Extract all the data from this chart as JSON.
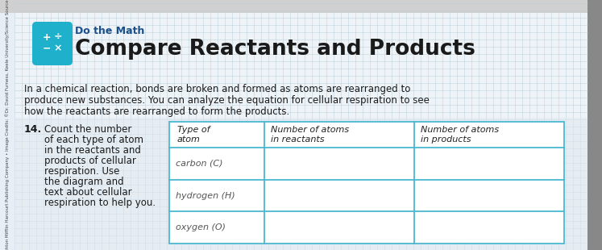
{
  "background_color": "#e8eef5",
  "notebook_bg": "#eef3f8",
  "grid_color": "#b8ccd8",
  "title_small": "Do the Math",
  "title_large": "Compare Reactants and Products",
  "icon_color": "#1fb0cc",
  "body_text_line1": "In a chemical reaction, bonds are broken and formed as atoms are rearranged to",
  "body_text_line2": "produce new substances. You can analyze the equation for cellular respiration to see",
  "body_text_line3": "how the reactants are rearranged to form the products.",
  "question_number": "14.",
  "question_text_lines": [
    "Count the number",
    "of each type of atom",
    "in the reactants and",
    "products of cellular",
    "respiration. Use",
    "the diagram and",
    "text about cellular",
    "respiration to help you."
  ],
  "table_headers_col0_line1": "Type of",
  "table_headers_col0_line2": "atom",
  "table_headers_col1_line1": "Number of atoms",
  "table_headers_col1_line2": "in reactants",
  "table_headers_col2_line1": "Number of atoms",
  "table_headers_col2_line2": "in products",
  "table_rows": [
    "carbon (C)",
    "hydrogen (H)",
    "oxygen (O)"
  ],
  "table_border_color": "#4ab8d0",
  "title_small_color": "#1a4f8a",
  "title_large_color": "#1a1a1a",
  "body_text_color": "#1a1a1a",
  "question_color": "#1a1a1a",
  "sidebar_text": "© Houghton Mifflin Harcourt Publishing Company • Image Credits: ©Dr. David Furness, Keele University/Science Source",
  "dark_right_color": "#888888",
  "toolbar_bg": "#d0d0d0"
}
